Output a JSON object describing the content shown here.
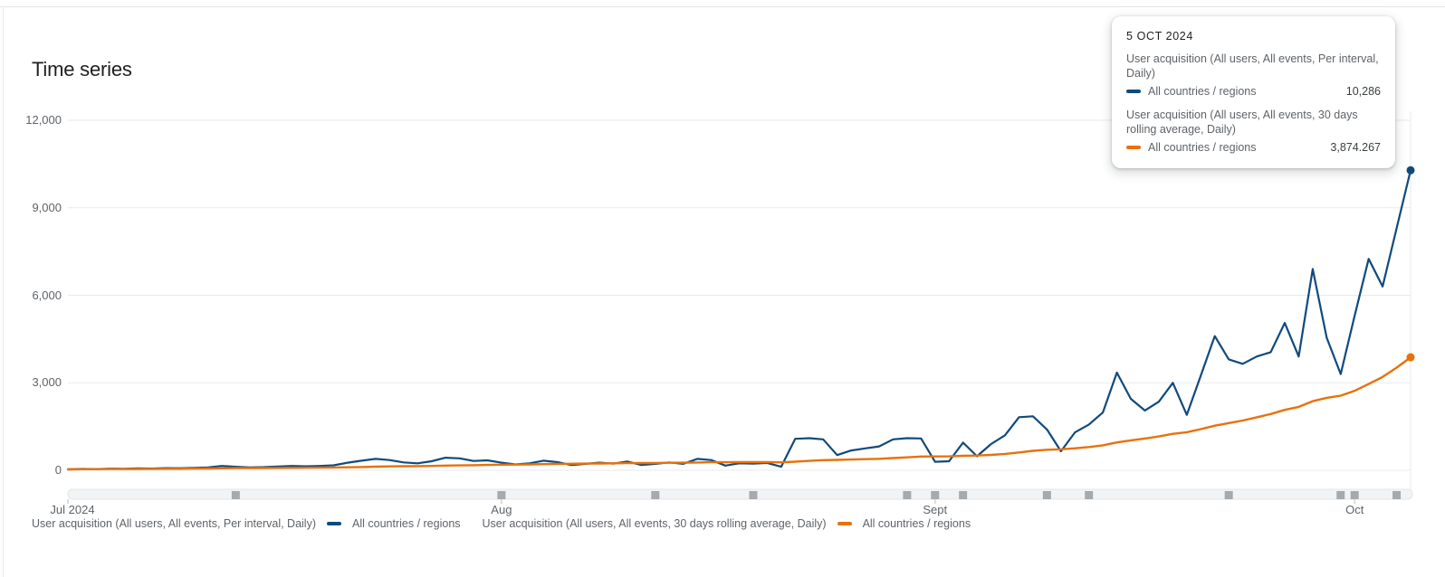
{
  "page": {
    "title": "Time series"
  },
  "tooltip": {
    "date": "5 OCT 2024",
    "series": [
      {
        "desc": "User acquisition (All users, All events, Per interval, Daily)",
        "label": "All countries / regions",
        "value": "10,286",
        "color": "#104a7d"
      },
      {
        "desc": "User acquisition (All users, All events, 30 days rolling average, Daily)",
        "label": "All countries / regions",
        "value": "3,874.267",
        "color": "#e8710a"
      }
    ]
  },
  "legend": {
    "items": [
      {
        "desc": "User acquisition (All users, All events, Per interval, Daily)",
        "label": "All countries / regions",
        "color": "#104a7d"
      },
      {
        "desc": "User acquisition (All users, All events, 30 days rolling average, Daily)",
        "label": "All countries / regions",
        "color": "#e8710a"
      }
    ]
  },
  "chart_data": {
    "type": "line",
    "title": "Time series",
    "x_start_date": "2024-07-01",
    "x_end_date": "2024-10-05",
    "num_days": 97,
    "ylim": [
      0,
      12000
    ],
    "y_ticks": [
      0,
      3000,
      6000,
      9000,
      12000
    ],
    "y_tick_labels": [
      "0",
      "3,000",
      "6,000",
      "9,000",
      "12,000"
    ],
    "x_tick_labels": [
      {
        "label": "Jul 2024",
        "day": 0
      },
      {
        "label": "Aug",
        "day": 31
      },
      {
        "label": "Sept",
        "day": 62
      },
      {
        "label": "Oct",
        "day": 92
      }
    ],
    "grid": "horizontal",
    "legend_position": "bottom",
    "annotation_marker_days": [
      12,
      31,
      42,
      49,
      60,
      62,
      64,
      70,
      73,
      83,
      91,
      92,
      95
    ],
    "series": [
      {
        "name": "User acquisition (All users, All events, Per interval, Daily) - All countries / regions",
        "color": "#104a7d",
        "values": [
          30,
          45,
          40,
          55,
          50,
          65,
          60,
          75,
          70,
          85,
          100,
          150,
          120,
          100,
          110,
          130,
          150,
          135,
          150,
          170,
          260,
          330,
          390,
          350,
          270,
          240,
          310,
          430,
          410,
          320,
          340,
          260,
          200,
          240,
          330,
          280,
          180,
          220,
          260,
          230,
          300,
          180,
          220,
          270,
          220,
          390,
          350,
          160,
          240,
          230,
          250,
          120,
          1080,
          1100,
          1060,
          520,
          680,
          750,
          820,
          1060,
          1100,
          1090,
          290,
          310,
          950,
          480,
          900,
          1200,
          1820,
          1850,
          1400,
          650,
          1300,
          1570,
          1980,
          3350,
          2450,
          2050,
          2350,
          3000,
          1900,
          3250,
          4600,
          3800,
          3650,
          3900,
          4050,
          5050,
          3900,
          6900,
          4550,
          3300,
          5300,
          7250,
          6300,
          8300,
          10286
        ]
      },
      {
        "name": "User acquisition (All users, All events, 30 days rolling average, Daily) - All countries / regions",
        "color": "#e8710a",
        "values": [
          30,
          38,
          38,
          43,
          44,
          48,
          49,
          53,
          54,
          58,
          61,
          69,
          73,
          75,
          77,
          80,
          84,
          87,
          91,
          95,
          102,
          113,
          125,
          134,
          140,
          143,
          150,
          160,
          168,
          173,
          184,
          191,
          196,
          202,
          212,
          219,
          223,
          228,
          234,
          239,
          246,
          247,
          250,
          256,
          259,
          268,
          275,
          275,
          278,
          280,
          280,
          273,
          296,
          321,
          347,
          357,
          369,
          380,
          393,
          418,
          443,
          471,
          474,
          476,
          497,
          504,
          528,
          560,
          612,
          666,
          703,
          719,
          755,
          798,
          857,
          955,
          1025,
          1088,
          1159,
          1251,
          1306,
          1410,
          1528,
          1618,
          1704,
          1817,
          1929,
          2072,
          2175,
          2370,
          2485,
          2558,
          2725,
          2957,
          3200,
          3520,
          3874.267
        ]
      }
    ],
    "colors": {
      "daily_line": "#104a7d",
      "rolling_line": "#e8710a",
      "gridline": "#e8eaed",
      "axis_text": "#5f6368",
      "annotation_marker": "#a6a9ae",
      "scrubber_band": "#f1f3f4",
      "scrubber_border": "#e3e6e8"
    }
  }
}
